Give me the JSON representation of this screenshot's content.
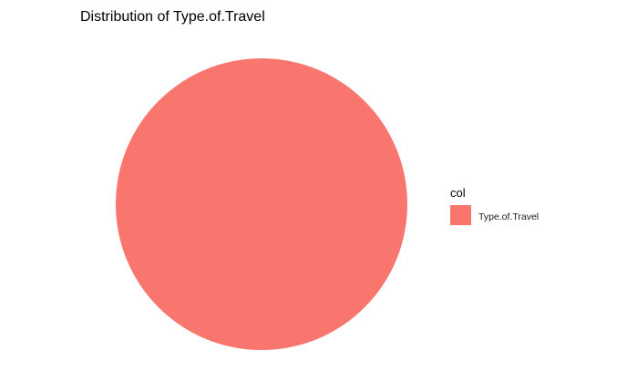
{
  "chart_data": {
    "type": "pie",
    "title": "Distribution of Type.of.Travel",
    "categories": [
      "Type.of.Travel"
    ],
    "values": [
      1
    ],
    "colors": [
      "#F8766D"
    ],
    "legend": {
      "title": "col",
      "placement": "right",
      "entries": [
        "Type.of.Travel"
      ]
    },
    "grid": false
  }
}
